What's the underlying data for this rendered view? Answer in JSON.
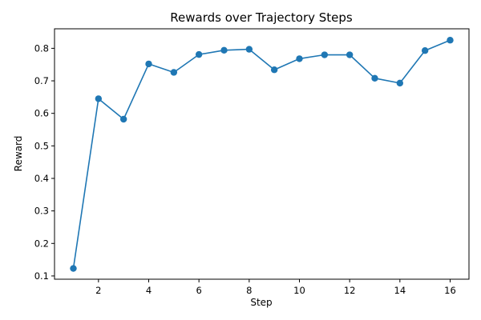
{
  "chart_data": {
    "type": "line",
    "title": "Rewards over Trajectory Steps",
    "xlabel": "Step",
    "ylabel": "Reward",
    "xlim": [
      0.25,
      16.75
    ],
    "ylim": [
      0.09,
      0.86
    ],
    "x_ticks": [
      2,
      4,
      6,
      8,
      10,
      12,
      14,
      16
    ],
    "y_ticks": [
      0.1,
      0.2,
      0.3,
      0.4,
      0.5,
      0.6,
      0.7,
      0.8
    ],
    "grid": false,
    "legend": "none",
    "series": [
      {
        "color": "#1f77b4",
        "marker": "circle",
        "x": [
          1,
          2,
          3,
          4,
          5,
          6,
          7,
          8,
          9,
          10,
          11,
          12,
          13,
          14,
          15,
          16
        ],
        "y": [
          0.123,
          0.645,
          0.582,
          0.752,
          0.726,
          0.781,
          0.794,
          0.797,
          0.734,
          0.768,
          0.78,
          0.78,
          0.708,
          0.693,
          0.793,
          0.825
        ]
      }
    ]
  }
}
